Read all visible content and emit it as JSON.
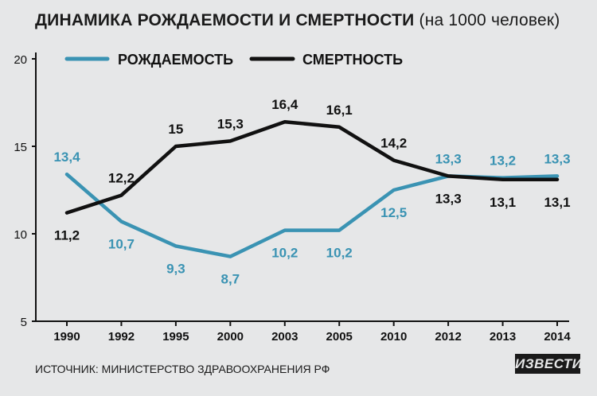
{
  "chart_data": {
    "type": "line",
    "title": "ДИНАМИКА РОЖДАЕМОСТИ И СМЕРТНОСТИ",
    "subtitle": "(на 1000 человек)",
    "categories": [
      "1990",
      "1992",
      "1995",
      "2000",
      "2003",
      "2005",
      "2010",
      "2012",
      "2013",
      "2014"
    ],
    "series": [
      {
        "name": "РОЖДАЕМОСТЬ",
        "color": "#3a93b3",
        "values": [
          13.4,
          10.7,
          9.3,
          8.7,
          10.2,
          10.2,
          12.5,
          13.3,
          13.2,
          13.3
        ],
        "labels": [
          "13,4",
          "10,7",
          "9,3",
          "8,7",
          "10,2",
          "10,2",
          "12,5",
          "13,3",
          "13,2",
          "13,3"
        ]
      },
      {
        "name": "СМЕРТНОСТЬ",
        "color": "#111111",
        "values": [
          11.2,
          12.2,
          15.0,
          15.3,
          16.4,
          16.1,
          14.2,
          13.3,
          13.1,
          13.1
        ],
        "labels": [
          "11,2",
          "12,2",
          "15",
          "15,3",
          "16,4",
          "16,1",
          "14,2",
          "13,3",
          "13,1",
          "13,1"
        ]
      }
    ],
    "yticks": [
      "5",
      "10",
      "15",
      "20"
    ],
    "ylim": [
      5,
      20
    ],
    "legend": "top",
    "grid": false
  },
  "source": "ИСТОЧНИК: МИНИСТЕРСТВО ЗДРАВООХРАНЕНИЯ РФ",
  "logo_text": "ИЗВЕСТИЯ"
}
